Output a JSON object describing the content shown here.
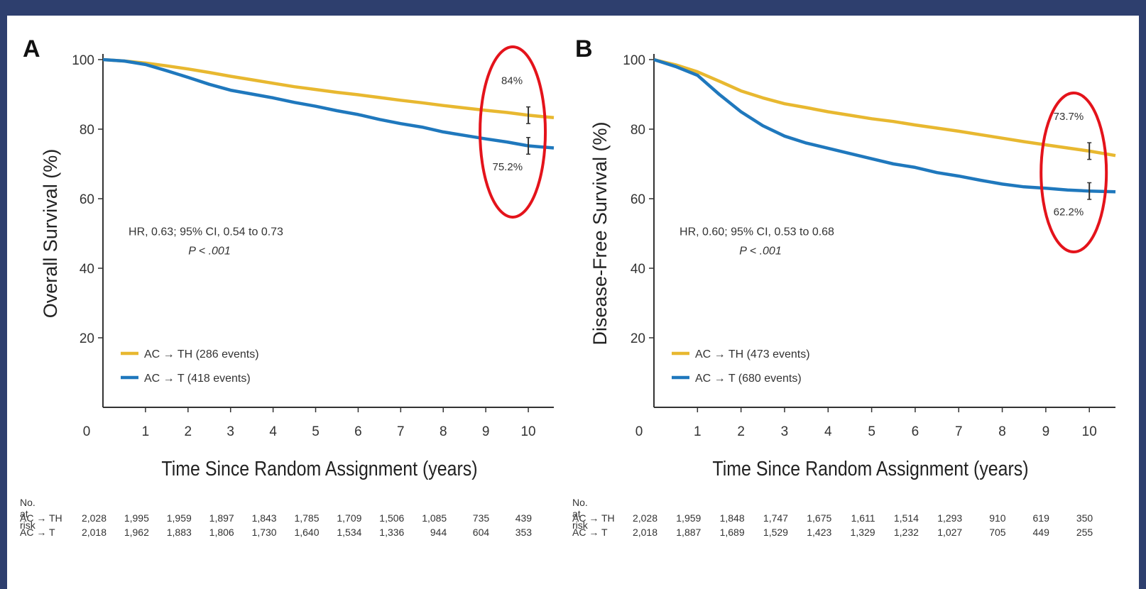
{
  "colors": {
    "th": "#e8b830",
    "t": "#1f78bd",
    "circle": "#e4131b",
    "frame": "#2e3f6e"
  },
  "chart_data": [
    {
      "type": "line",
      "panel_letter": "A",
      "ylabel": "Overall Survival (%)",
      "xlabel": "Time Since Random Assignment (years)",
      "xlim": [
        0,
        10.6
      ],
      "ylim": [
        0,
        100
      ],
      "x_ticks": [
        "0",
        "1",
        "2",
        "3",
        "4",
        "5",
        "6",
        "7",
        "8",
        "9",
        "10"
      ],
      "y_ticks": [
        "20",
        "40",
        "60",
        "80",
        "100"
      ],
      "grid": false,
      "legend_position": "bottom-left",
      "series": [
        {
          "name": "AC → TH (286 events)",
          "key": "th",
          "x": [
            0,
            0.5,
            1,
            1.5,
            2,
            2.5,
            3,
            3.5,
            4,
            4.5,
            5,
            5.5,
            6,
            6.5,
            7,
            7.5,
            8,
            8.5,
            9,
            9.5,
            10,
            10.6
          ],
          "y": [
            100,
            99.6,
            99,
            98.2,
            97.3,
            96.3,
            95.2,
            94.2,
            93.2,
            92.2,
            91.4,
            90.6,
            89.9,
            89.1,
            88.3,
            87.6,
            86.8,
            86.1,
            85.4,
            84.8,
            84.0,
            83.3
          ]
        },
        {
          "name": "AC → T (418 events)",
          "key": "t",
          "x": [
            0,
            0.5,
            1,
            1.5,
            2,
            2.5,
            3,
            3.5,
            4,
            4.5,
            5,
            5.5,
            6,
            6.5,
            7,
            7.5,
            8,
            8.5,
            9,
            9.5,
            10,
            10.6
          ],
          "y": [
            100,
            99.6,
            98.6,
            96.8,
            94.9,
            92.9,
            91.2,
            90.1,
            89.0,
            87.7,
            86.6,
            85.3,
            84.2,
            82.8,
            81.6,
            80.6,
            79.2,
            78.2,
            77.2,
            76.3,
            75.2,
            74.6
          ]
        }
      ],
      "annotations": {
        "stats": "HR, 0.63; 95% CI, 0.54 to 0.73",
        "p": "P < .001",
        "end_th": "84%",
        "end_t": "75.2%"
      },
      "at_risk": {
        "title": "No. at risk",
        "rows": [
          {
            "label": "AC → TH",
            "values": [
              "2,028",
              "1,995",
              "1,959",
              "1,897",
              "1,843",
              "1,785",
              "1,709",
              "1,506",
              "1,085",
              "735",
              "439"
            ]
          },
          {
            "label": "AC → T",
            "values": [
              "2,018",
              "1,962",
              "1,883",
              "1,806",
              "1,730",
              "1,640",
              "1,534",
              "1,336",
              "944",
              "604",
              "353"
            ]
          }
        ]
      }
    },
    {
      "type": "line",
      "panel_letter": "B",
      "ylabel": "Disease-Free Survival (%)",
      "xlabel": "Time Since Random Assignment (years)",
      "xlim": [
        0,
        10.6
      ],
      "ylim": [
        0,
        100
      ],
      "x_ticks": [
        "0",
        "1",
        "2",
        "3",
        "4",
        "5",
        "6",
        "7",
        "8",
        "9",
        "10"
      ],
      "y_ticks": [
        "20",
        "40",
        "60",
        "80",
        "100"
      ],
      "grid": false,
      "legend_position": "bottom-left",
      "series": [
        {
          "name": "AC → TH (473 events)",
          "key": "th",
          "x": [
            0,
            0.5,
            1,
            1.5,
            2,
            2.5,
            3,
            3.5,
            4,
            4.5,
            5,
            5.5,
            6,
            6.5,
            7,
            7.5,
            8,
            8.5,
            9,
            9.5,
            10,
            10.6
          ],
          "y": [
            100,
            98.5,
            96.5,
            93.8,
            91.0,
            89.0,
            87.3,
            86.2,
            85.0,
            84.0,
            83.0,
            82.2,
            81.2,
            80.3,
            79.4,
            78.4,
            77.4,
            76.4,
            75.5,
            74.6,
            73.7,
            72.4
          ]
        },
        {
          "name": "AC → T (680 events)",
          "key": "t",
          "x": [
            0,
            0.5,
            1,
            1.5,
            2,
            2.5,
            3,
            3.5,
            4,
            4.5,
            5,
            5.5,
            6,
            6.5,
            7,
            7.5,
            8,
            8.5,
            9,
            9.5,
            10,
            10.6
          ],
          "y": [
            100,
            98.0,
            95.5,
            90.0,
            85.0,
            81.0,
            78.0,
            76.0,
            74.5,
            73.0,
            71.5,
            70.0,
            69.0,
            67.5,
            66.5,
            65.3,
            64.2,
            63.4,
            63.0,
            62.5,
            62.2,
            62.0
          ]
        }
      ],
      "annotations": {
        "stats": "HR, 0.60; 95% CI, 0.53 to 0.68",
        "p": "P < .001",
        "end_th": "73.7%",
        "end_t": "62.2%"
      },
      "at_risk": {
        "title": "No. at risk",
        "rows": [
          {
            "label": "AC → TH",
            "values": [
              "2,028",
              "1,959",
              "1,848",
              "1,747",
              "1,675",
              "1,611",
              "1,514",
              "1,293",
              "910",
              "619",
              "350"
            ]
          },
          {
            "label": "AC → T",
            "values": [
              "2,018",
              "1,887",
              "1,689",
              "1,529",
              "1,423",
              "1,329",
              "1,232",
              "1,027",
              "705",
              "449",
              "255"
            ]
          }
        ]
      }
    }
  ]
}
